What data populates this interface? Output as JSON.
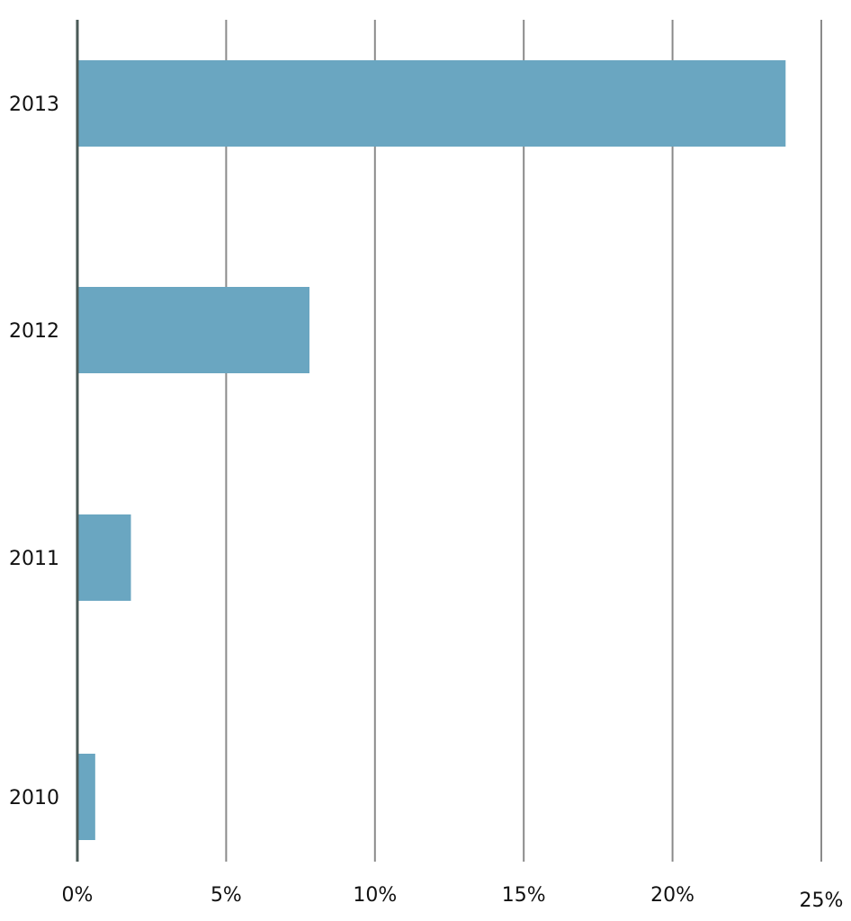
{
  "chart_data": {
    "type": "bar",
    "orientation": "horizontal",
    "categories": [
      "2013",
      "2012",
      "2011",
      "2010"
    ],
    "values": [
      23.8,
      7.8,
      1.8,
      0.6
    ],
    "xlim": [
      0,
      25
    ],
    "x_ticks": [
      0,
      5,
      10,
      15,
      20,
      25
    ],
    "x_tick_labels": [
      "0%",
      "5%",
      "10%",
      "15%",
      "20%",
      "25%"
    ],
    "title": "",
    "xlabel": "",
    "ylabel": "",
    "grid": "vertical",
    "legend": "none",
    "colors": {
      "bar": "#6aa6c1",
      "grid": "#8a8a8a",
      "axis": "#4a5a57",
      "text": "#111111"
    }
  }
}
